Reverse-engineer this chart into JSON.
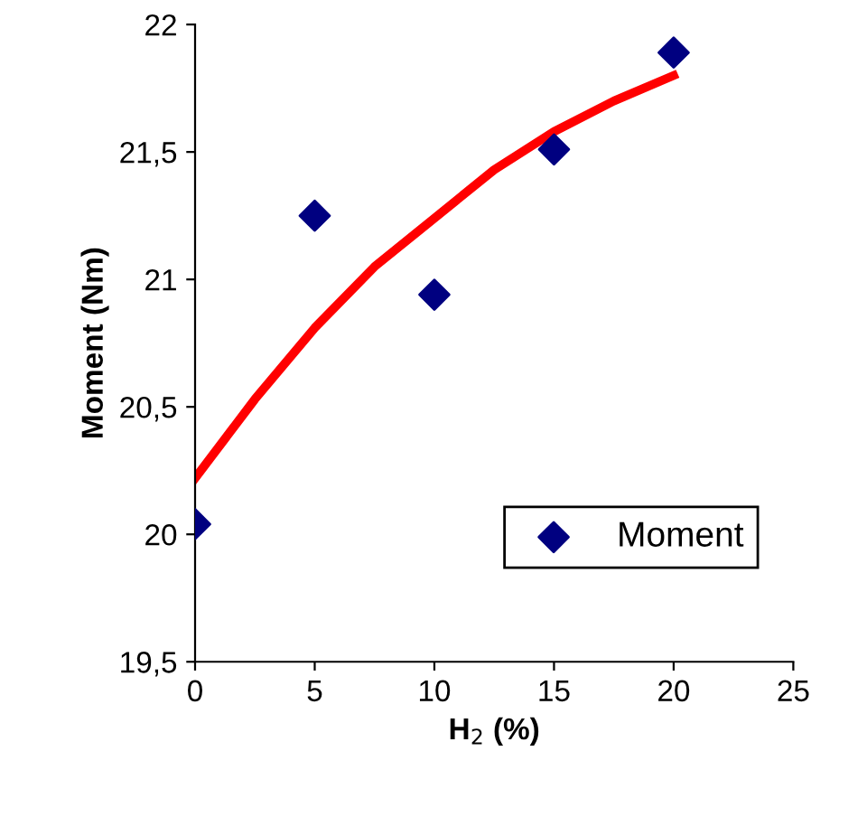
{
  "chart_data": {
    "type": "scatter",
    "xlabel": "H$_{2}$ (%)",
    "ylabel": "Moment (Nm)",
    "x": [
      0,
      5,
      10,
      15,
      20
    ],
    "series": [
      {
        "name": "Moment",
        "color": "#000080",
        "marker": "diamond",
        "values": [
          20.04,
          21.25,
          20.94,
          21.51,
          21.89
        ]
      },
      {
        "type": "line",
        "color": "#ff0000",
        "marker": "none",
        "line_style": "solid",
        "x": [
          0,
          2.5,
          5,
          7.5,
          10,
          12.5,
          15,
          17.5,
          20
        ],
        "values": [
          20.22,
          20.53,
          20.81,
          21.05,
          21.24,
          21.43,
          21.58,
          21.7,
          21.8
        ]
      }
    ],
    "xlim": [
      0,
      25
    ],
    "xticks": [
      0,
      5,
      10,
      15,
      20,
      25
    ],
    "ylim": [
      19.5,
      22
    ],
    "yticks": [
      {
        "value": 19.5,
        "label": "19,5"
      },
      20,
      {
        "value": 20.5,
        "label": "20,5"
      },
      21,
      {
        "value": 21.5,
        "label": "21,5"
      },
      22
    ],
    "grid": false,
    "legend": "bottom right"
  }
}
